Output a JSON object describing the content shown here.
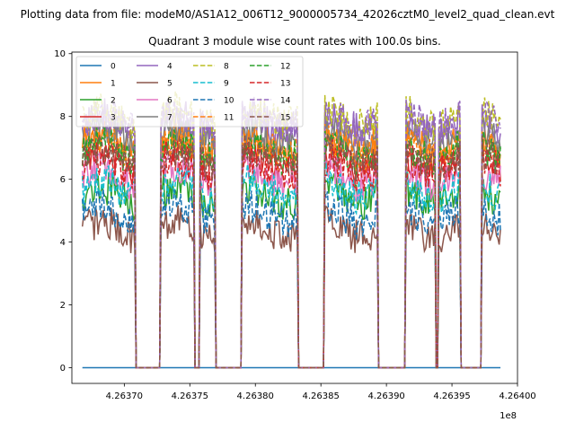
{
  "figure": {
    "suptitle": "Plotting data from file: modeM0/AS1A12_006T12_9000005734_42026cztM0_level2_quad_clean.evt"
  },
  "chart_data": {
    "type": "line",
    "title": "Quadrant 3 module wise count rates with 100.0s bins.",
    "xlabel": "",
    "ylabel": "",
    "x_offset_label": "1e8",
    "xlim": [
      426366000,
      426400000
    ],
    "ylim": [
      -0.5,
      10.05
    ],
    "xticks": [
      426370000,
      426375000,
      426380000,
      426385000,
      426390000,
      426395000,
      426400000
    ],
    "xtick_labels": [
      "4.26370",
      "4.26375",
      "4.26380",
      "4.26385",
      "4.26390",
      "4.26395",
      "4.26400"
    ],
    "yticks": [
      0,
      2,
      4,
      6,
      8,
      10
    ],
    "ytick_labels": [
      "0",
      "2",
      "4",
      "6",
      "8",
      "10"
    ],
    "grid": false,
    "legend_placement": "top-left",
    "legend_columns": 4,
    "bin_seconds": 100,
    "x_range": [
      426366800,
      426398700
    ],
    "gaps": [
      [
        426370900,
        426372700
      ],
      [
        426375400,
        426375700
      ],
      [
        426377000,
        426378900
      ],
      [
        426383300,
        426385200
      ],
      [
        426389400,
        426391400
      ],
      [
        426393800,
        426393900
      ],
      [
        426395700,
        426397200
      ]
    ],
    "series": [
      {
        "name": "0",
        "color": "#1f77b4",
        "dash": "solid",
        "level": 0.0
      },
      {
        "name": "1",
        "color": "#ff7f0e",
        "dash": "solid",
        "level": 7.2
      },
      {
        "name": "2",
        "color": "#2ca02c",
        "dash": "solid",
        "level": 5.5
      },
      {
        "name": "3",
        "color": "#d62728",
        "dash": "solid",
        "level": 6.6
      },
      {
        "name": "4",
        "color": "#9467bd",
        "dash": "solid",
        "level": 7.8
      },
      {
        "name": "5",
        "color": "#8c564b",
        "dash": "solid",
        "level": 4.4
      },
      {
        "name": "6",
        "color": "#e377c2",
        "dash": "solid",
        "level": 6.1
      },
      {
        "name": "7",
        "color": "#7f7f7f",
        "dash": "solid",
        "level": 7.4
      },
      {
        "name": "8",
        "color": "#bcbd22",
        "dash": "dashed",
        "level": 8.0
      },
      {
        "name": "9",
        "color": "#17becf",
        "dash": "dashed",
        "level": 5.7
      },
      {
        "name": "10",
        "color": "#1f77b4",
        "dash": "dashed",
        "level": 4.9
      },
      {
        "name": "11",
        "color": "#ff7f0e",
        "dash": "dashed",
        "level": 7.0
      },
      {
        "name": "12",
        "color": "#2ca02c",
        "dash": "dashed",
        "level": 6.9
      },
      {
        "name": "13",
        "color": "#d62728",
        "dash": "dashed",
        "level": 6.4
      },
      {
        "name": "14",
        "color": "#9467bd",
        "dash": "dashed",
        "level": 7.9
      },
      {
        "name": "15",
        "color": "#8c564b",
        "dash": "dashed",
        "level": 6.7
      }
    ]
  }
}
